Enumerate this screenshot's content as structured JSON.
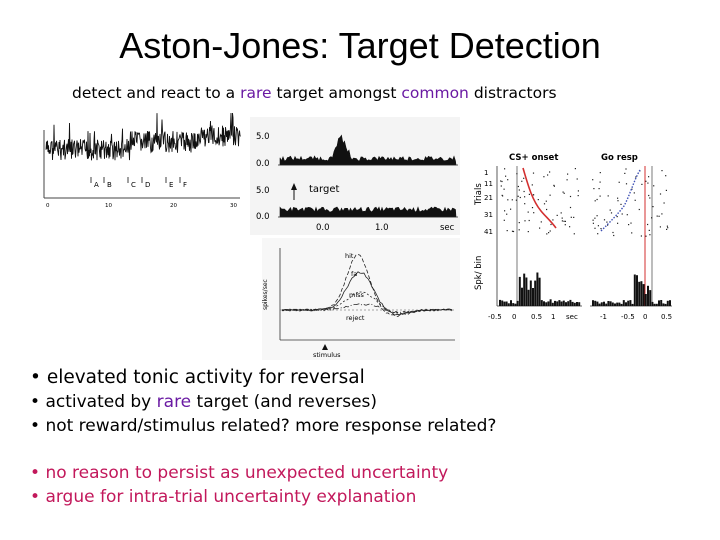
{
  "slide": {
    "title": "Aston-Jones: Target Detection",
    "subtitle": {
      "pre": "detect and react to a ",
      "rare": "rare",
      "mid": " target amongst ",
      "common": "common",
      "post": " distractors"
    },
    "bullets_group1": [
      {
        "text": "elevated tonic activity for reversal"
      },
      {
        "pre": "activated by ",
        "rare": "rare",
        "post": " target (and reverses)"
      },
      {
        "text": "not reward/stimulus related? more response related?"
      }
    ],
    "bullets_group2": [
      {
        "text": "no reason to persist as unexpected uncertainty"
      },
      {
        "text": "argue for intra-trial uncertainty explanation"
      }
    ],
    "bullet_glyph": "•"
  },
  "figures": {
    "topleft": {
      "markers": [
        "A",
        "B",
        "C",
        "D",
        "E",
        "F"
      ],
      "x_ticks": [
        "0",
        "10",
        "20",
        "30"
      ]
    },
    "psth": {
      "y_labels_top": [
        "5.0",
        "0.0"
      ],
      "y_labels_bottom": [
        "5.0",
        "0.0"
      ],
      "target_label": "target",
      "x_labels": [
        "0.0",
        "1.0",
        "sec"
      ]
    },
    "lines": {
      "curve_labels": [
        "hit",
        "fa",
        "miss",
        "reject"
      ],
      "ylabel": "spikes/sec",
      "xlabel": "stimulus"
    },
    "raster": {
      "left_title": "CS+ onset",
      "right_title": "Go resp",
      "ylabel_top": "Trials",
      "ylabel_bottom": "Spk/ bin",
      "trial_ticks": [
        "1",
        "11",
        "21",
        "31",
        "41"
      ],
      "x_ticks_left": [
        "-0.5",
        "0",
        "0.5",
        "1"
      ],
      "x_unit": "sec",
      "x_ticks_right": [
        "-1",
        "-0.5",
        "0",
        "0.5"
      ]
    }
  }
}
